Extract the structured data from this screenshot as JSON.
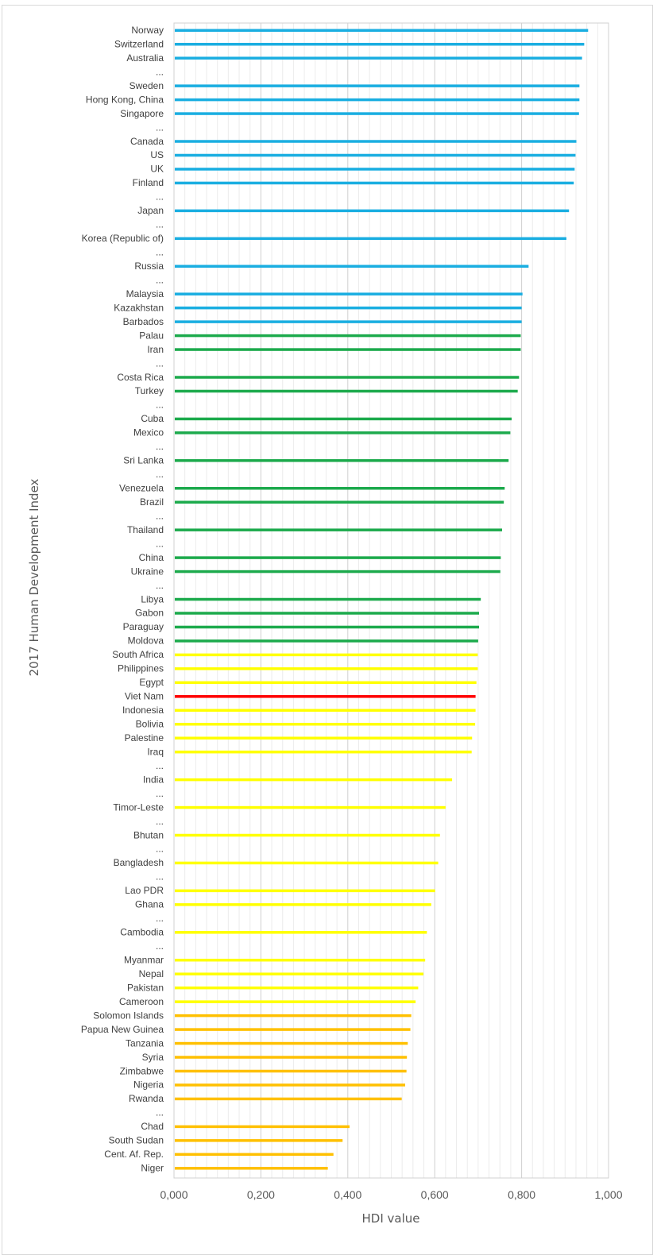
{
  "chart_data": {
    "type": "bar",
    "orientation": "horizontal",
    "xlabel": "HDI value",
    "ylabel": "2017 Human Development Index",
    "xlim": [
      0,
      1
    ],
    "xticks": [
      "0,000",
      "0,200",
      "0,400",
      "0,600",
      "0,800",
      "1,000"
    ],
    "grid": {
      "major": true,
      "minor": true
    },
    "colors": {
      "very_high": "#1aaee1",
      "high": "#1caa4c",
      "medium": "#ffff00",
      "low": "#ffc000",
      "highlight": "#ff0000"
    },
    "categories": [
      "Norway",
      "Switzerland",
      "Australia",
      "...",
      "Sweden",
      "Hong Kong, China",
      "Singapore",
      "...",
      "Canada",
      "US",
      "UK",
      "Finland",
      "...",
      "Japan",
      "...",
      "Korea (Republic of)",
      "...",
      "Russia",
      "...",
      "Malaysia",
      "Kazakhstan",
      "Barbados",
      "Palau",
      "Iran",
      "...",
      "Costa Rica",
      "Turkey",
      "...",
      "Cuba",
      "Mexico",
      "...",
      "Sri Lanka",
      "...",
      "Venezuela",
      "Brazil",
      "...",
      "Thailand",
      "...",
      "China",
      "Ukraine",
      "...",
      "Libya",
      "Gabon",
      "Paraguay",
      "Moldova",
      "South Africa",
      "Philippines",
      "Egypt",
      "Viet Nam",
      "Indonesia",
      "Bolivia",
      "Palestine",
      "Iraq",
      "...",
      "India",
      "...",
      "Timor-Leste",
      "...",
      "Bhutan",
      "...",
      "Bangladesh",
      "...",
      "Lao PDR",
      "Ghana",
      "...",
      "Cambodia",
      "...",
      "Myanmar",
      "Nepal",
      "Pakistan",
      "Cameroon",
      "Solomon Islands",
      "Papua New Guinea",
      "Tanzania",
      "Syria",
      "Zimbabwe",
      "Nigeria",
      "Rwanda",
      "...",
      "Chad",
      "South Sudan",
      "Cent. Af. Rep.",
      "Niger"
    ],
    "values": [
      0.953,
      0.944,
      0.939,
      null,
      0.933,
      0.933,
      0.932,
      null,
      0.926,
      0.924,
      0.922,
      0.92,
      null,
      0.909,
      null,
      0.903,
      null,
      0.816,
      null,
      0.802,
      0.8,
      0.8,
      0.798,
      0.798,
      null,
      0.794,
      0.791,
      null,
      0.777,
      0.774,
      null,
      0.77,
      null,
      0.761,
      0.759,
      null,
      0.755,
      null,
      0.752,
      0.751,
      null,
      0.706,
      0.702,
      0.702,
      0.7,
      0.699,
      0.699,
      0.696,
      0.694,
      0.694,
      0.693,
      0.686,
      0.685,
      null,
      0.64,
      null,
      0.625,
      null,
      0.612,
      null,
      0.608,
      null,
      0.601,
      0.592,
      null,
      0.582,
      null,
      0.578,
      0.574,
      0.562,
      0.556,
      0.546,
      0.544,
      0.538,
      0.536,
      0.535,
      0.532,
      0.524,
      null,
      0.404,
      0.388,
      0.367,
      0.354
    ],
    "groups": [
      "very_high",
      "very_high",
      "very_high",
      null,
      "very_high",
      "very_high",
      "very_high",
      null,
      "very_high",
      "very_high",
      "very_high",
      "very_high",
      null,
      "very_high",
      null,
      "very_high",
      null,
      "very_high",
      null,
      "very_high",
      "very_high",
      "very_high",
      "high",
      "high",
      null,
      "high",
      "high",
      null,
      "high",
      "high",
      null,
      "high",
      null,
      "high",
      "high",
      null,
      "high",
      null,
      "high",
      "high",
      null,
      "high",
      "high",
      "high",
      "high",
      "medium",
      "medium",
      "medium",
      "highlight",
      "medium",
      "medium",
      "medium",
      "medium",
      null,
      "medium",
      null,
      "medium",
      null,
      "medium",
      null,
      "medium",
      null,
      "medium",
      "medium",
      null,
      "medium",
      null,
      "medium",
      "medium",
      "medium",
      "medium",
      "low",
      "low",
      "low",
      "low",
      "low",
      "low",
      "low",
      null,
      "low",
      "low",
      "low",
      "low"
    ]
  }
}
